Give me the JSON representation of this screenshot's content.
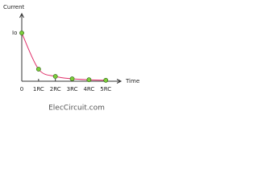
{
  "chart_data": {
    "type": "line",
    "y_label": "Current",
    "x_label": "Time",
    "watermark": "ElecCircuit.com",
    "x": [
      0,
      1,
      2,
      3,
      4,
      5
    ],
    "values": [
      1,
      0.25,
      0.1,
      0.05,
      0.03,
      0.02
    ],
    "color": "#e0306a",
    "marker_color": "#7ccf3a",
    "xlim": [
      0,
      5.9
    ],
    "ylim": [
      0,
      1.4
    ],
    "xticks": [
      0,
      {
        "value": 1,
        "label": "1RC"
      },
      {
        "value": 2,
        "label": "2RC"
      },
      {
        "value": 3,
        "label": "3RC"
      },
      {
        "value": 4,
        "label": "4RC"
      },
      {
        "value": 5,
        "label": "5RC"
      }
    ],
    "yticks": [
      {
        "value": 1,
        "label": "Io"
      }
    ]
  }
}
